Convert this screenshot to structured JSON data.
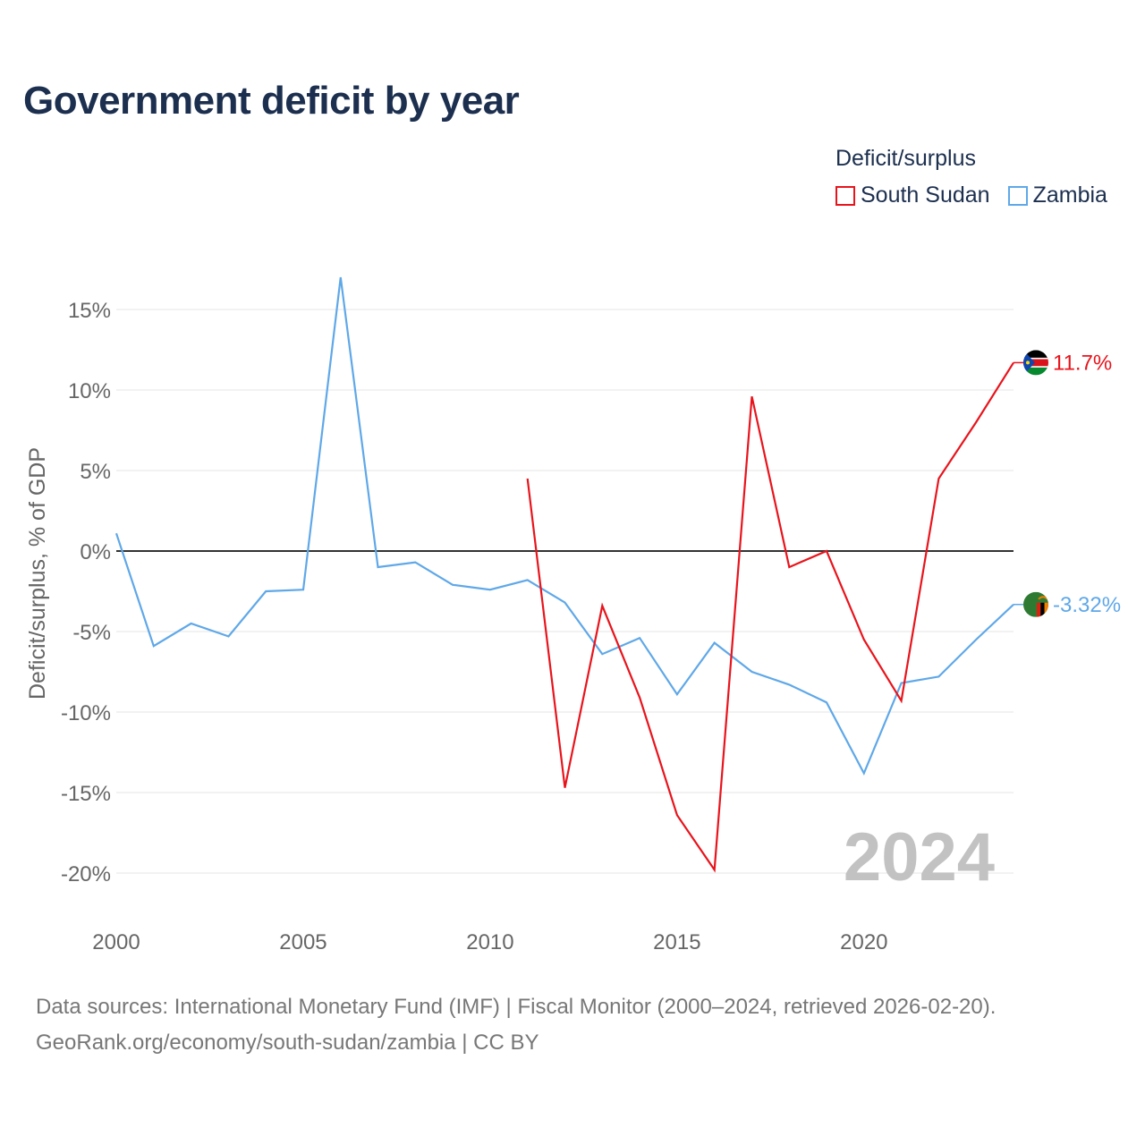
{
  "chart_data": {
    "type": "line",
    "title": "Government deficit by year",
    "ylabel": "Deficit/surplus, % of GDP",
    "xlabel": "",
    "x": [
      2000,
      2001,
      2002,
      2003,
      2004,
      2005,
      2006,
      2007,
      2008,
      2009,
      2010,
      2011,
      2012,
      2013,
      2014,
      2015,
      2016,
      2017,
      2018,
      2019,
      2020,
      2021,
      2022,
      2023,
      2024
    ],
    "xlim": [
      2000,
      2024
    ],
    "ylim": [
      -20,
      15
    ],
    "x_ticks": [
      2000,
      2005,
      2010,
      2015,
      2020
    ],
    "y_ticks": [
      15,
      10,
      5,
      0,
      -5,
      -10,
      -15,
      -20
    ],
    "y_tick_labels": [
      "15%",
      "10%",
      "5%",
      "0%",
      "-5%",
      "-10%",
      "-15%",
      "-20%"
    ],
    "legend_title": "Deficit/surplus",
    "legend_position": "top-right",
    "watermark": "2024",
    "series": [
      {
        "name": "South Sudan",
        "color": "#e8141c",
        "values": [
          null,
          null,
          null,
          null,
          null,
          null,
          null,
          null,
          null,
          null,
          null,
          4.5,
          -14.7,
          -3.4,
          -9.1,
          -16.4,
          -19.8,
          9.6,
          -1.0,
          0.0,
          -5.5,
          -9.3,
          4.5,
          8.0,
          11.7
        ],
        "end_label": "11.7%"
      },
      {
        "name": "Zambia",
        "color": "#5fa8e8",
        "values": [
          1.1,
          -5.9,
          -4.5,
          -5.3,
          -2.5,
          -2.4,
          17.0,
          -1.0,
          -0.7,
          -2.1,
          -2.4,
          -1.8,
          -3.2,
          -6.4,
          -5.4,
          -8.9,
          -5.7,
          -7.5,
          -8.3,
          -9.4,
          -13.8,
          -8.2,
          -7.8,
          -5.5,
          -3.32
        ],
        "end_label": "-3.32%"
      }
    ]
  },
  "footer": {
    "line1": "Data sources: International Monetary Fund (IMF) | Fiscal Monitor (2000–2024, retrieved 2026-02-20).",
    "line2": "GeoRank.org/economy/south-sudan/zambia | CC BY"
  },
  "icons": {
    "south_sudan": "south-sudan-flag-icon",
    "zambia": "zambia-flag-icon"
  }
}
